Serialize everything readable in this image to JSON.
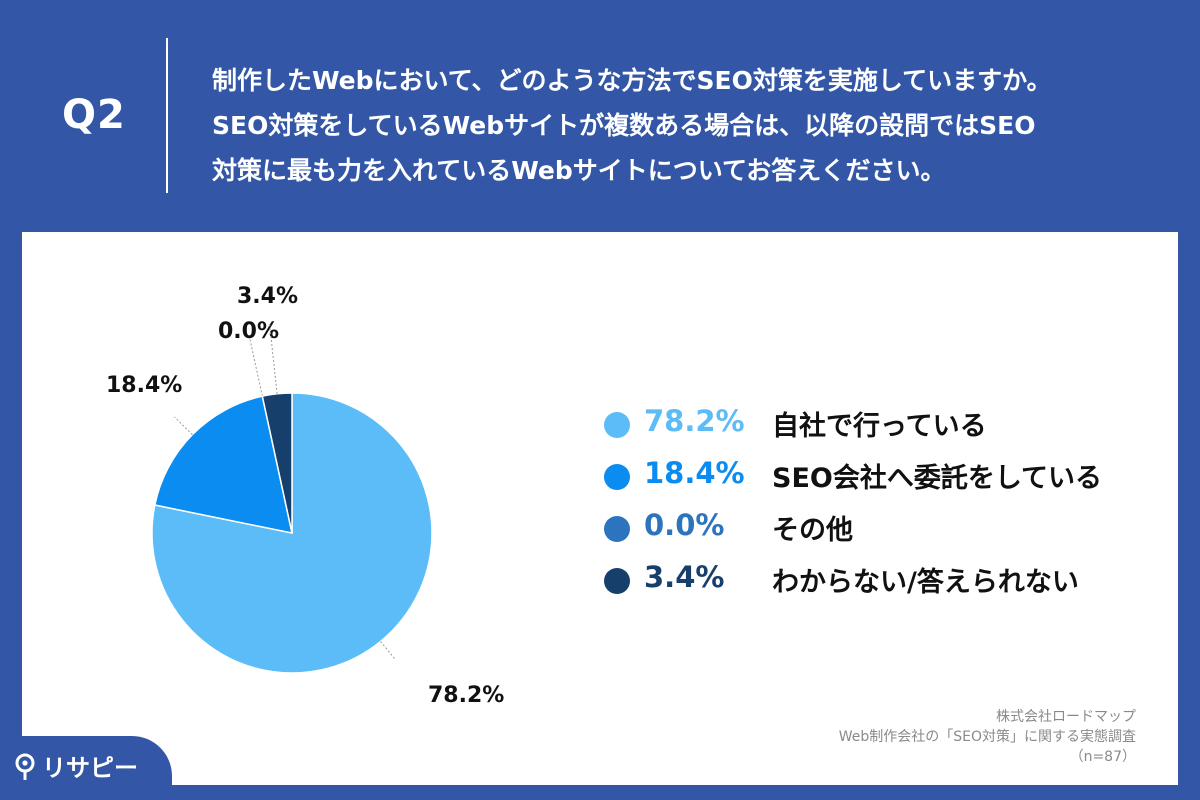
{
  "header": {
    "qlabel": "Q2",
    "question_lines": [
      "制作したWebにおいて、どのような方法でSEO対策を実施していますか。",
      "SEO対策をしているWebサイトが複数ある場合は、以降の設問ではSEO",
      "対策に最も力を入れているWebサイトについてお答えください。"
    ]
  },
  "chart_data": {
    "type": "pie",
    "categories": [
      "自社で行っている",
      "SEO会社へ委託をしている",
      "その他",
      "わからない/答えられない"
    ],
    "values": [
      78.2,
      18.4,
      0.0,
      3.4
    ],
    "value_labels": [
      "78.2%",
      "18.4%",
      "0.0%",
      "3.4%"
    ],
    "colors": [
      "#5bbcf7",
      "#0a8cf0",
      "#2d74be",
      "#163f6b"
    ],
    "start": "top",
    "direction": "clockwise",
    "legend_position": "right"
  },
  "source": {
    "line1": "株式会社ロードマップ",
    "line2": "Web制作会社の「SEO対策」に関する実態調査",
    "line3": "（n=87）"
  },
  "brand": {
    "name": "リサピー",
    "icon": "location-pin-icon"
  }
}
